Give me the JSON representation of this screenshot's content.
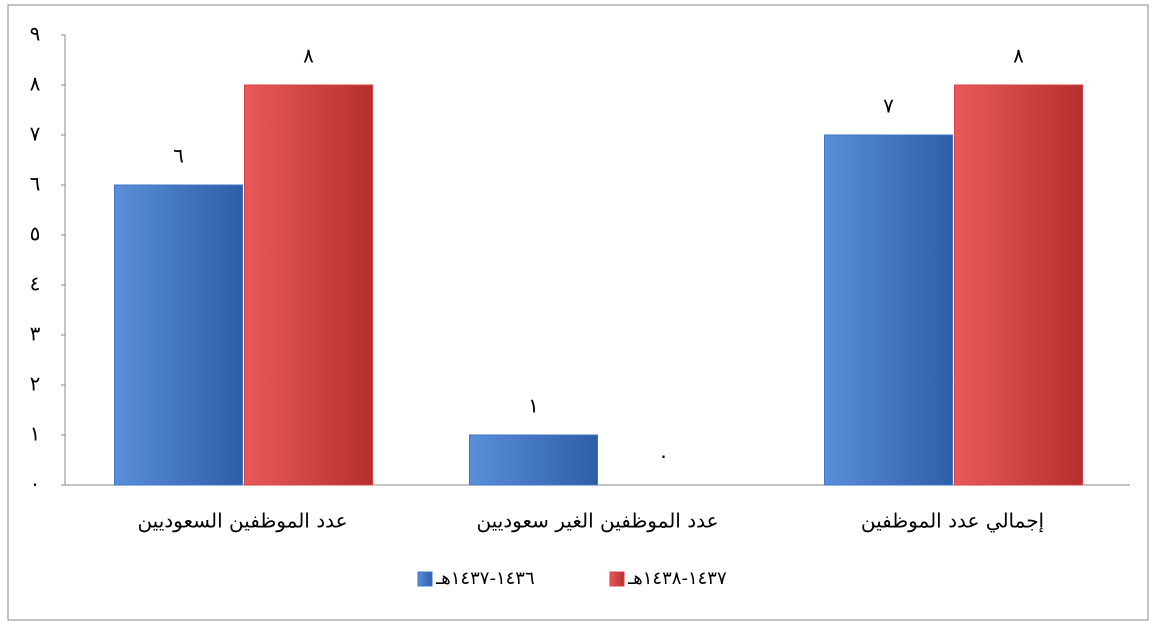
{
  "chart_data": {
    "type": "bar",
    "categories": [
      "عدد الموظفين السعوديين",
      "عدد الموظفين الغير سعوديين",
      "إجمالي عدد الموظفين"
    ],
    "series": [
      {
        "name": "١٤٣٦-١٤٣٧هـ",
        "color": "#3f74c4",
        "values": [
          6,
          1,
          7
        ],
        "value_labels": [
          "٦",
          "١",
          "٧"
        ]
      },
      {
        "name": "١٤٣٧-١٤٣٨هـ",
        "color": "#d94141",
        "values": [
          8,
          0,
          8
        ],
        "value_labels": [
          "٨",
          "٠",
          "٨"
        ]
      }
    ],
    "ylim": [
      0,
      9
    ],
    "yticks": [
      {
        "value": 0,
        "label": "٠"
      },
      {
        "value": 1,
        "label": "١"
      },
      {
        "value": 2,
        "label": "٢"
      },
      {
        "value": 3,
        "label": "٣"
      },
      {
        "value": 4,
        "label": "٤"
      },
      {
        "value": 5,
        "label": "٥"
      },
      {
        "value": 6,
        "label": "٦"
      },
      {
        "value": 7,
        "label": "٧"
      },
      {
        "value": 8,
        "label": "٨"
      },
      {
        "value": 9,
        "label": "٩"
      }
    ],
    "grid": false,
    "legend": "bottom"
  }
}
